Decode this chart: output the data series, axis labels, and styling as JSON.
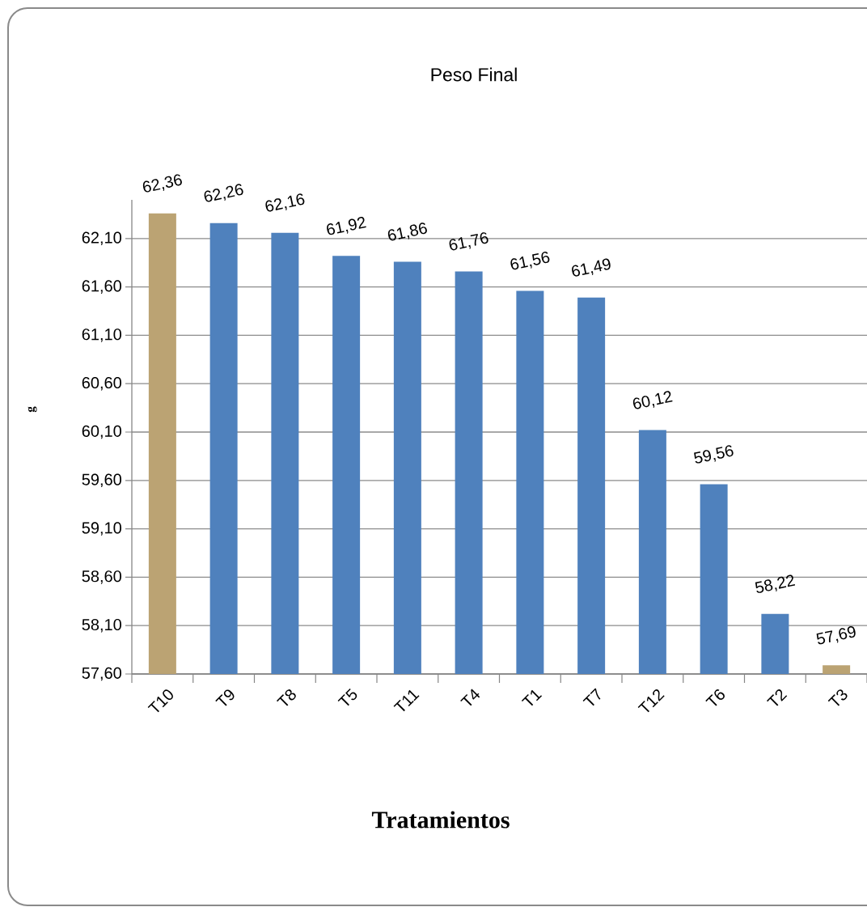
{
  "chart_data": {
    "type": "bar",
    "title": "Peso Final",
    "xlabel": "Tratamientos",
    "ylabel": "g",
    "categories": [
      "T10",
      "T9",
      "T8",
      "T5",
      "T11",
      "T4",
      "T1",
      "T7",
      "T12",
      "T6",
      "T2",
      "T3"
    ],
    "values": [
      62.36,
      62.26,
      62.16,
      61.92,
      61.86,
      61.76,
      61.56,
      61.49,
      60.12,
      59.56,
      58.22,
      57.69
    ],
    "value_labels": [
      "62,36",
      "62,26",
      "62,16",
      "61,92",
      "61,86",
      "61,76",
      "61,56",
      "61,49",
      "60,12",
      "59,56",
      "58,22",
      "57,69"
    ],
    "colors": [
      "#bba373",
      "#4f81bd",
      "#4f81bd",
      "#4f81bd",
      "#4f81bd",
      "#4f81bd",
      "#4f81bd",
      "#4f81bd",
      "#4f81bd",
      "#4f81bd",
      "#4f81bd",
      "#bba373"
    ],
    "ylim": [
      57.6,
      62.5
    ],
    "yticks": [
      {
        "value": 57.6,
        "label": "57,60"
      },
      {
        "value": 58.1,
        "label": "58,10"
      },
      {
        "value": 58.6,
        "label": "58,60"
      },
      {
        "value": 59.1,
        "label": "59,10"
      },
      {
        "value": 59.6,
        "label": "59,60"
      },
      {
        "value": 60.1,
        "label": "60,10"
      },
      {
        "value": 60.6,
        "label": "60,60"
      },
      {
        "value": 61.1,
        "label": "61,10"
      },
      {
        "value": 61.6,
        "label": "61,60"
      },
      {
        "value": 62.1,
        "label": "62,10"
      }
    ],
    "grid": "y"
  }
}
